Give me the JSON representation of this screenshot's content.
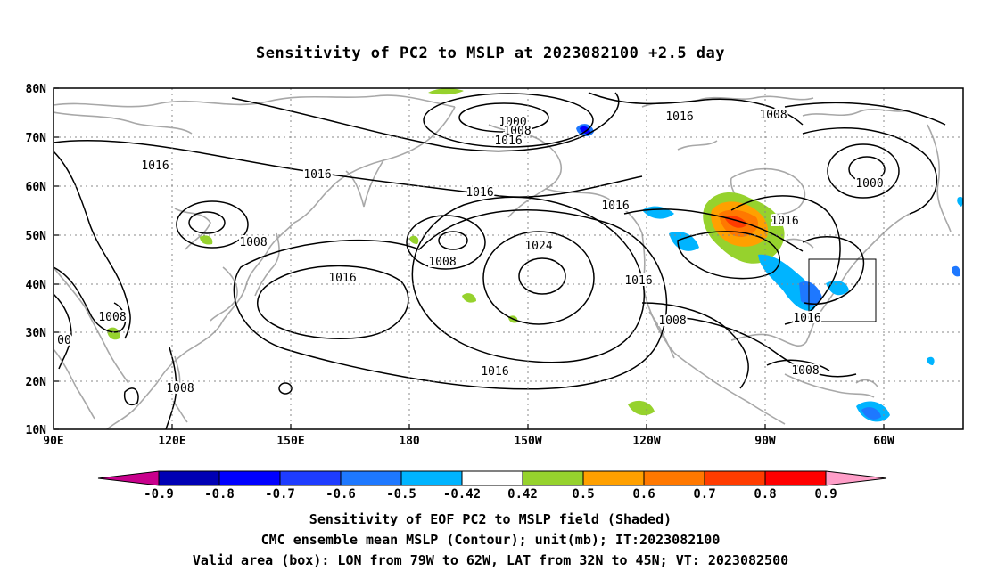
{
  "title": "Sensitivity of PC2 to MSLP at 2023082100 +2.5 day",
  "lat_labels": [
    "80N",
    "70N",
    "60N",
    "50N",
    "40N",
    "30N",
    "20N",
    "10N"
  ],
  "lon_labels": [
    "90E",
    "120E",
    "150E",
    "180",
    "150W",
    "120W",
    "90W",
    "60W"
  ],
  "contour_labels": [
    {
      "text": "1000"
    },
    {
      "text": "1008"
    },
    {
      "text": "1016"
    },
    {
      "text": "1016"
    },
    {
      "text": "1016"
    },
    {
      "text": "1016"
    },
    {
      "text": "1008"
    },
    {
      "text": "1000"
    },
    {
      "text": "1016"
    },
    {
      "text": "1008"
    },
    {
      "text": "1016"
    },
    {
      "text": "1016"
    },
    {
      "text": "1016"
    },
    {
      "text": "1008"
    },
    {
      "text": "1024"
    },
    {
      "text": "1016"
    },
    {
      "text": "1016"
    },
    {
      "text": "1008"
    },
    {
      "text": "1016"
    },
    {
      "text": "1008"
    },
    {
      "text": "1008"
    },
    {
      "text": "1008"
    },
    {
      "text": "00"
    },
    {
      "text": "1008"
    }
  ],
  "colorbar": {
    "labels": [
      "-0.9",
      "-0.8",
      "-0.7",
      "-0.6",
      "-0.5",
      "-0.42",
      "0.42",
      "0.5",
      "0.6",
      "0.7",
      "0.8",
      "0.9"
    ],
    "colors": [
      "#c8008c",
      "#0000b4",
      "#0000ff",
      "#1e3cff",
      "#1e78ff",
      "#00b4ff",
      "#ffffff",
      "#96d22d",
      "#ffa000",
      "#ff7800",
      "#ff3c00",
      "#ff0000",
      "#ff9ec8"
    ]
  },
  "captions": {
    "line1": "Sensitivity of EOF PC2 to MSLP field (Shaded)",
    "line2": "CMC ensemble mean MSLP (Contour); unit(mb); IT:2023082100",
    "line3": "Valid area (box): LON from 79W to 62W, LAT from 32N to 45N; VT: 2023082500"
  }
}
